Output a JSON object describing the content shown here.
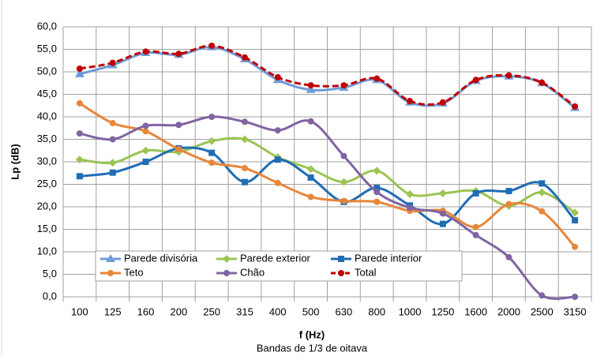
{
  "chart_data": {
    "type": "line",
    "x_label": "f (Hz)",
    "x_sublabel": "Bandas de 1/3 de oitava",
    "y_label": "Lp (dB)",
    "categories": [
      "100",
      "125",
      "160",
      "200",
      "250",
      "315",
      "400",
      "500",
      "630",
      "800",
      "1000",
      "1250",
      "1600",
      "2000",
      "2500",
      "3150"
    ],
    "ylim": [
      0,
      60
    ],
    "yticks": [
      {
        "value": 0,
        "label": "0,0"
      },
      {
        "value": 5,
        "label": "5,0"
      },
      {
        "value": 10,
        "label": "10,0"
      },
      {
        "value": 15,
        "label": "15,0"
      },
      {
        "value": 20,
        "label": "20,0"
      },
      {
        "value": 25,
        "label": "25,0"
      },
      {
        "value": 30,
        "label": "30,0"
      },
      {
        "value": 35,
        "label": "35,0"
      },
      {
        "value": 40,
        "label": "40,0"
      },
      {
        "value": 45,
        "label": "45,0"
      },
      {
        "value": 50,
        "label": "50,0"
      },
      {
        "value": 55,
        "label": "55,0"
      },
      {
        "value": 60,
        "label": "60,0"
      }
    ],
    "grid": true,
    "legend": "bottom-left",
    "series": [
      {
        "name": "Parede divisória",
        "color": "#6f9bd8",
        "marker": "triangle",
        "values": [
          49.5,
          51.5,
          54.2,
          53.8,
          55.5,
          52.8,
          48.2,
          46,
          46.5,
          48.2,
          43.2,
          43,
          48,
          49,
          47.5,
          42
        ]
      },
      {
        "name": "Parede exterior",
        "color": "#9bc454",
        "marker": "diamond",
        "values": [
          30.5,
          29.8,
          32.5,
          32.2,
          34.6,
          35,
          31,
          28.4,
          25.5,
          28,
          22.8,
          23,
          23.5,
          20.2,
          23.2,
          18.7
        ]
      },
      {
        "name": "Parede interior",
        "color": "#1f6db5",
        "marker": "square",
        "values": [
          26.8,
          27.6,
          30,
          33,
          32,
          25.5,
          30.5,
          26.5,
          21.1,
          24.2,
          20.3,
          16.2,
          23,
          23.5,
          25.2,
          17
        ]
      },
      {
        "name": "Teto",
        "color": "#e8863a",
        "marker": "circle",
        "values": [
          43,
          38.6,
          36.8,
          32.8,
          29.8,
          28.6,
          25.3,
          22.2,
          21.3,
          21.1,
          19.1,
          19.1,
          15.5,
          20.6,
          19,
          11.1
        ]
      },
      {
        "name": "Chão",
        "color": "#8064a2",
        "marker": "circle",
        "values": [
          36.3,
          35,
          38,
          38.2,
          40,
          38.9,
          37,
          39,
          31.3,
          23.3,
          19.8,
          18.5,
          13.7,
          8.8,
          0.3,
          0
        ]
      },
      {
        "name": "Total",
        "color": "#c00000",
        "marker": "circle",
        "dash": true,
        "values": [
          50.7,
          52,
          54.5,
          54,
          55.8,
          53.2,
          48.8,
          47,
          47,
          48.5,
          43.5,
          43.2,
          48.2,
          49.2,
          47.6,
          42.3
        ]
      }
    ]
  }
}
